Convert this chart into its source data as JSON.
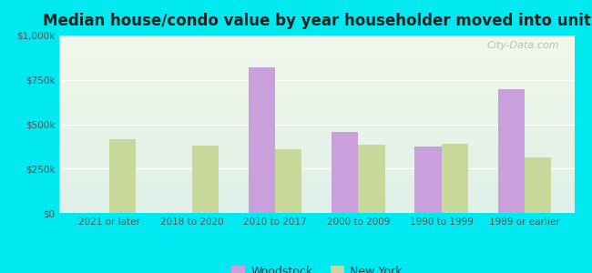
{
  "title": "Median house/condo value by year householder moved into unit",
  "categories": [
    "2021 or later",
    "2018 to 2020",
    "2010 to 2017",
    "2000 to 2009",
    "1990 to 1999",
    "1989 or earlier"
  ],
  "woodstock": [
    0,
    0,
    820000,
    455000,
    375000,
    700000
  ],
  "new_york": [
    415000,
    380000,
    360000,
    385000,
    390000,
    315000
  ],
  "woodstock_color": "#c9a0dc",
  "new_york_color": "#c8d89a",
  "background_outer": "#00e8f0",
  "background_inner_top": "#f0f8e8",
  "background_inner_bottom": "#e0f0e8",
  "ylim": [
    0,
    1000000
  ],
  "yticks": [
    0,
    250000,
    500000,
    750000,
    1000000
  ],
  "ytick_labels": [
    "$0",
    "$250k",
    "$500k",
    "$750k",
    "$1,000k"
  ],
  "legend_woodstock": "Woodstock",
  "legend_new_york": "New York",
  "watermark": "City-Data.com",
  "bar_width": 0.32
}
